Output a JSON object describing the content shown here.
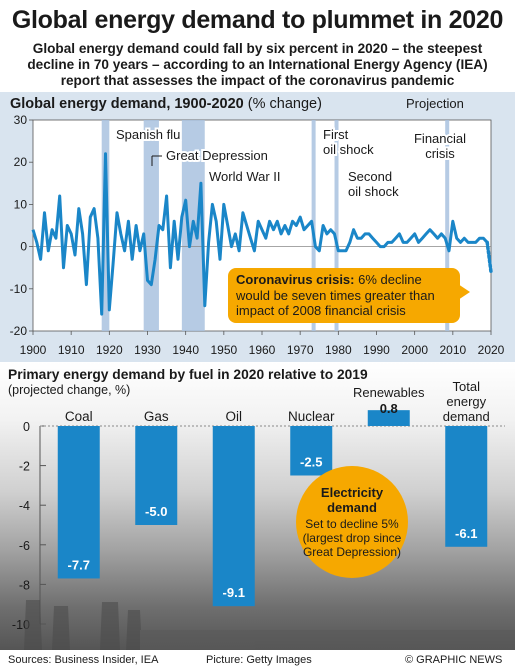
{
  "header": {
    "title": "Global energy demand to plummet in 2020",
    "subtitle": "Global energy demand could fall by six percent in 2020 – the steepest decline in 70 years – according to an International Energy Agency (IEA) report that assesses the impact of the coronavirus pandemic"
  },
  "colors": {
    "line": "#1a86c8",
    "bar": "#1a86c8",
    "panel": "#d9e4ef",
    "event_band": "#a9c2df",
    "accent": "#f6a800"
  },
  "chart_data": [
    {
      "type": "line",
      "title": "Global energy demand, 1900-2020",
      "unit": "(% change)",
      "legend": "Projection",
      "legend_position": "top-right",
      "xlim": [
        1900,
        2020
      ],
      "ylim": [
        -20,
        30
      ],
      "yticks": [
        30,
        20,
        10,
        0,
        -10,
        -20
      ],
      "xticks": [
        1900,
        1910,
        1920,
        1930,
        1940,
        1950,
        1960,
        1970,
        1980,
        1990,
        2000,
        2010,
        2020
      ],
      "series": [
        {
          "values": [
            [
              1900,
              4
            ],
            [
              1901,
              1
            ],
            [
              1902,
              -3
            ],
            [
              1903,
              8
            ],
            [
              1904,
              -1
            ],
            [
              1905,
              4
            ],
            [
              1906,
              2
            ],
            [
              1907,
              12
            ],
            [
              1908,
              -5
            ],
            [
              1909,
              5
            ],
            [
              1910,
              3
            ],
            [
              1911,
              -2
            ],
            [
              1912,
              9
            ],
            [
              1913,
              3
            ],
            [
              1914,
              -9
            ],
            [
              1915,
              7
            ],
            [
              1916,
              9
            ],
            [
              1917,
              2
            ],
            [
              1918,
              -16
            ],
            [
              1919,
              22
            ],
            [
              1920,
              -15
            ],
            [
              1921,
              -4
            ],
            [
              1922,
              8
            ],
            [
              1923,
              3
            ],
            [
              1924,
              -1
            ],
            [
              1925,
              6
            ],
            [
              1926,
              -3
            ],
            [
              1927,
              5
            ],
            [
              1928,
              -1
            ],
            [
              1929,
              3
            ],
            [
              1930,
              -8
            ],
            [
              1931,
              -9
            ],
            [
              1932,
              -3
            ],
            [
              1933,
              5
            ],
            [
              1934,
              4
            ],
            [
              1935,
              12
            ],
            [
              1936,
              -5
            ],
            [
              1937,
              6
            ],
            [
              1938,
              -3
            ],
            [
              1939,
              7
            ],
            [
              1940,
              11
            ],
            [
              1941,
              0
            ],
            [
              1942,
              6
            ],
            [
              1943,
              2
            ],
            [
              1944,
              15
            ],
            [
              1945,
              -14
            ],
            [
              1946,
              1
            ],
            [
              1947,
              10
            ],
            [
              1948,
              6
            ],
            [
              1949,
              -3
            ],
            [
              1950,
              10
            ],
            [
              1951,
              5
            ],
            [
              1952,
              0
            ],
            [
              1953,
              3
            ],
            [
              1954,
              -1
            ],
            [
              1955,
              8
            ],
            [
              1956,
              5
            ],
            [
              1957,
              2
            ],
            [
              1958,
              -1
            ],
            [
              1959,
              6
            ],
            [
              1960,
              4
            ],
            [
              1961,
              2
            ],
            [
              1962,
              6
            ],
            [
              1963,
              4
            ],
            [
              1964,
              6
            ],
            [
              1965,
              3
            ],
            [
              1966,
              5
            ],
            [
              1967,
              3
            ],
            [
              1968,
              6
            ],
            [
              1969,
              5
            ],
            [
              1970,
              7
            ],
            [
              1971,
              4
            ],
            [
              1972,
              5
            ],
            [
              1973,
              6
            ],
            [
              1974,
              0
            ],
            [
              1975,
              -1
            ],
            [
              1976,
              5
            ],
            [
              1977,
              3
            ],
            [
              1978,
              4
            ],
            [
              1979,
              3
            ],
            [
              1980,
              -1
            ],
            [
              1981,
              -1
            ],
            [
              1982,
              -1
            ],
            [
              1983,
              1
            ],
            [
              1984,
              4
            ],
            [
              1985,
              2
            ],
            [
              1986,
              2
            ],
            [
              1987,
              3
            ],
            [
              1988,
              3
            ],
            [
              1989,
              2
            ],
            [
              1990,
              1
            ],
            [
              1991,
              0
            ],
            [
              1992,
              0
            ],
            [
              1993,
              1
            ],
            [
              1994,
              1
            ],
            [
              1995,
              2
            ],
            [
              1996,
              3
            ],
            [
              1997,
              1
            ],
            [
              1998,
              1
            ],
            [
              1999,
              2
            ],
            [
              2000,
              3
            ],
            [
              2001,
              1
            ],
            [
              2002,
              2
            ],
            [
              2003,
              3
            ],
            [
              2004,
              4
            ],
            [
              2005,
              3
            ],
            [
              2006,
              2
            ],
            [
              2007,
              3
            ],
            [
              2008,
              2
            ],
            [
              2009,
              -1
            ],
            [
              2010,
              6
            ],
            [
              2011,
              2
            ],
            [
              2012,
              1
            ],
            [
              2013,
              2
            ],
            [
              2014,
              1
            ],
            [
              2015,
              1
            ],
            [
              2016,
              1
            ],
            [
              2017,
              2
            ],
            [
              2018,
              2
            ],
            [
              2019,
              1
            ]
          ]
        },
        {
          "name": "Projection",
          "style": "dotted",
          "values": [
            [
              2019,
              1
            ],
            [
              2020,
              -6
            ]
          ]
        }
      ],
      "events": [
        {
          "label": "Spanish flu",
          "start": 1918,
          "end": 1920
        },
        {
          "label": "Great Depression",
          "start": 1929,
          "end": 1933
        },
        {
          "label": "World War II",
          "start": 1939,
          "end": 1945
        },
        {
          "label": "First oil shock",
          "start": 1973,
          "end": 1974
        },
        {
          "label": "Second oil shock",
          "start": 1979,
          "end": 1980
        },
        {
          "label": "Financial crisis",
          "start": 2008,
          "end": 2009
        }
      ],
      "annotation": {
        "bold": "Coronavirus crisis:",
        "text": "6% decline would be seven times greater than impact of 2008 financial crisis"
      }
    },
    {
      "type": "bar",
      "title": "Primary energy demand by fuel in 2020 relative to 2019",
      "unit": "(projected change, %)",
      "ylim": [
        -10,
        0
      ],
      "yticks": [
        0,
        -2,
        -4,
        -6,
        -8,
        -10
      ],
      "categories": [
        "Coal",
        "Gas",
        "Oil",
        "Nuclear",
        "Renewables",
        "Total energy demand"
      ],
      "values": [
        -7.7,
        -5.0,
        -9.1,
        -2.5,
        0.8,
        -6.1
      ],
      "value_labels": [
        "-7.7",
        "-5.0",
        "-9.1",
        "-2.5",
        "0.8",
        "-6.1"
      ],
      "annotation": {
        "title": "Electricity demand",
        "text": "Set to decline 5% (largest drop since Great Depression)"
      }
    }
  ],
  "footer": {
    "sources": "Sources: Business Insider, IEA",
    "picture": "Picture: Getty Images",
    "credit": "© GRAPHIC NEWS"
  }
}
